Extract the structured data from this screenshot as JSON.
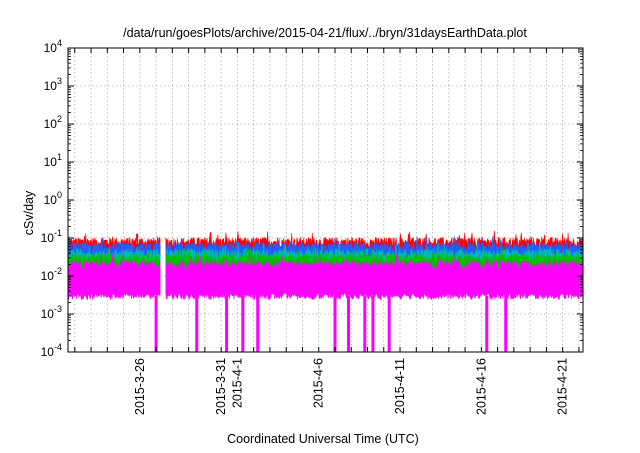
{
  "chart_data": {
    "type": "area",
    "title": "/data/run/goesPlots/archive/2015-04-21/flux/../bryn/31daysEarthData.plot",
    "xlabel": "Coordinated Universal Time (UTC)",
    "ylabel": "cSv/day",
    "yscale": "log",
    "ylim": [
      0.0001,
      10000
    ],
    "xlim": [
      "2015-03-21T14:00",
      "2015-04-22T06:00"
    ],
    "grid": true,
    "y_ticks": [
      {
        "base": "10",
        "exp": "-4",
        "value": 0.0001
      },
      {
        "base": "10",
        "exp": "-3",
        "value": 0.001
      },
      {
        "base": "10",
        "exp": "-2",
        "value": 0.01
      },
      {
        "base": "10",
        "exp": "-1",
        "value": 0.1
      },
      {
        "base": "10",
        "exp": "0",
        "value": 1
      },
      {
        "base": "10",
        "exp": "1",
        "value": 10
      },
      {
        "base": "10",
        "exp": "2",
        "value": 100
      },
      {
        "base": "10",
        "exp": "3",
        "value": 1000
      },
      {
        "base": "10",
        "exp": "4",
        "value": 10000
      }
    ],
    "x_ticks": [
      {
        "label": "2015-3-26",
        "date": "2015-03-26"
      },
      {
        "label": "2015-3-31",
        "date": "2015-03-31"
      },
      {
        "label": "2015-4-1",
        "date": "2015-04-01"
      },
      {
        "label": "2015-4-6",
        "date": "2015-04-06"
      },
      {
        "label": "2015-4-11",
        "date": "2015-04-11"
      },
      {
        "label": "2015-4-16",
        "date": "2015-04-16"
      },
      {
        "label": "2015-4-21",
        "date": "2015-04-21"
      }
    ],
    "series": [
      {
        "color": "#ff0000",
        "typical_range": [
          0.03,
          0.08
        ],
        "max": 0.13
      },
      {
        "color": "#2060ff",
        "typical_range": [
          0.025,
          0.06
        ]
      },
      {
        "color": "#00b8b8",
        "typical_range": [
          0.02,
          0.04
        ]
      },
      {
        "color": "#00c000",
        "typical_range": [
          0.015,
          0.03
        ]
      },
      {
        "color": "#ff00ff",
        "typical_range": [
          0.003,
          0.02
        ],
        "dropouts": [
          "2015-03-27T00:00",
          "2015-03-29T12:00",
          "2015-03-31T08:00",
          "2015-04-01T08:00",
          "2015-04-02T06:00",
          "2015-04-07T00:00",
          "2015-04-07T20:00",
          "2015-04-08T20:00",
          "2015-04-09T08:00",
          "2015-04-10T08:00",
          "2015-04-16T08:00",
          "2015-04-17T12:00"
        ]
      }
    ],
    "colors": {
      "red": "#ff0000",
      "blue": "#2060ff",
      "cyan": "#00b8b8",
      "green": "#00c000",
      "magenta": "#ff00ff"
    }
  }
}
